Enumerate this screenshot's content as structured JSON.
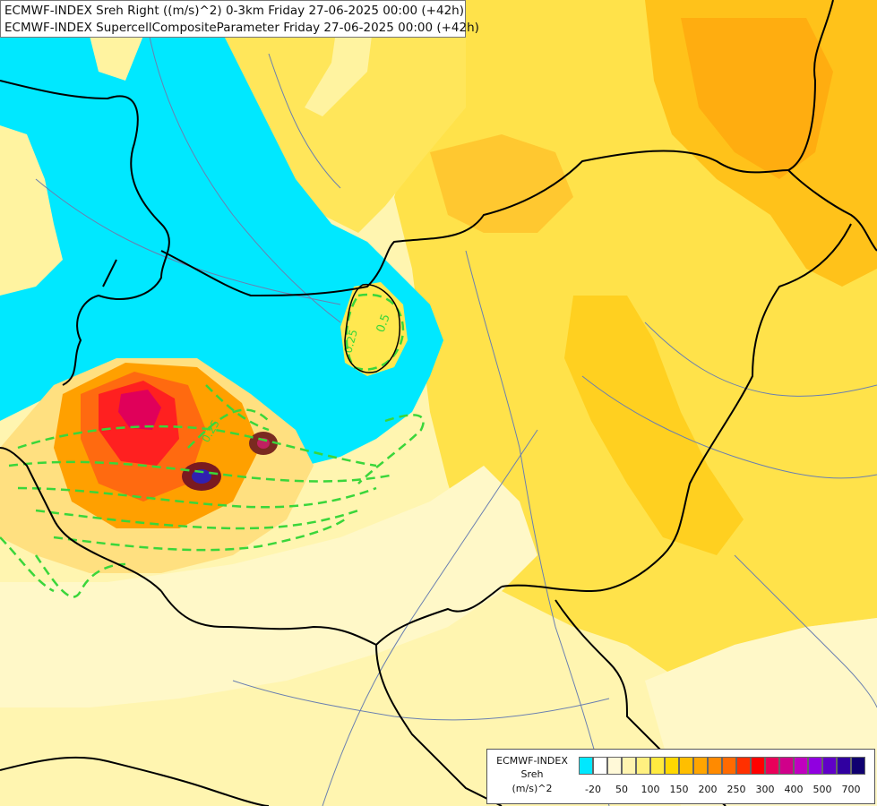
{
  "title": {
    "line1": "ECMWF-INDEX Sreh Right ((m/s)^2) 0-3km Friday 27-06-2025 00:00 (+42h)",
    "line2": "ECMWF-INDEX SupercellCompositeParameter Friday 27-06-2025 00:00 (+42h)"
  },
  "contour_labels": [
    "0.5",
    "0.25",
    "0.25"
  ],
  "legend": {
    "line1": "ECMWF-INDEX",
    "line2": "Sreh",
    "line3": "(m/s)^2",
    "colors": [
      "#00e8ff",
      "#ffffff",
      "#fff9d8",
      "#fff4b0",
      "#fff080",
      "#ffea40",
      "#ffd800",
      "#ffbe00",
      "#ffa500",
      "#ff8a00",
      "#ff6a00",
      "#ff3000",
      "#ff0000",
      "#e8005a",
      "#d0008a",
      "#c000c0",
      "#9000e0",
      "#6000c8",
      "#3000a0",
      "#100070"
    ],
    "ticks": [
      "-20",
      "50",
      "100",
      "150",
      "200",
      "250",
      "300",
      "400",
      "500",
      "700"
    ]
  }
}
